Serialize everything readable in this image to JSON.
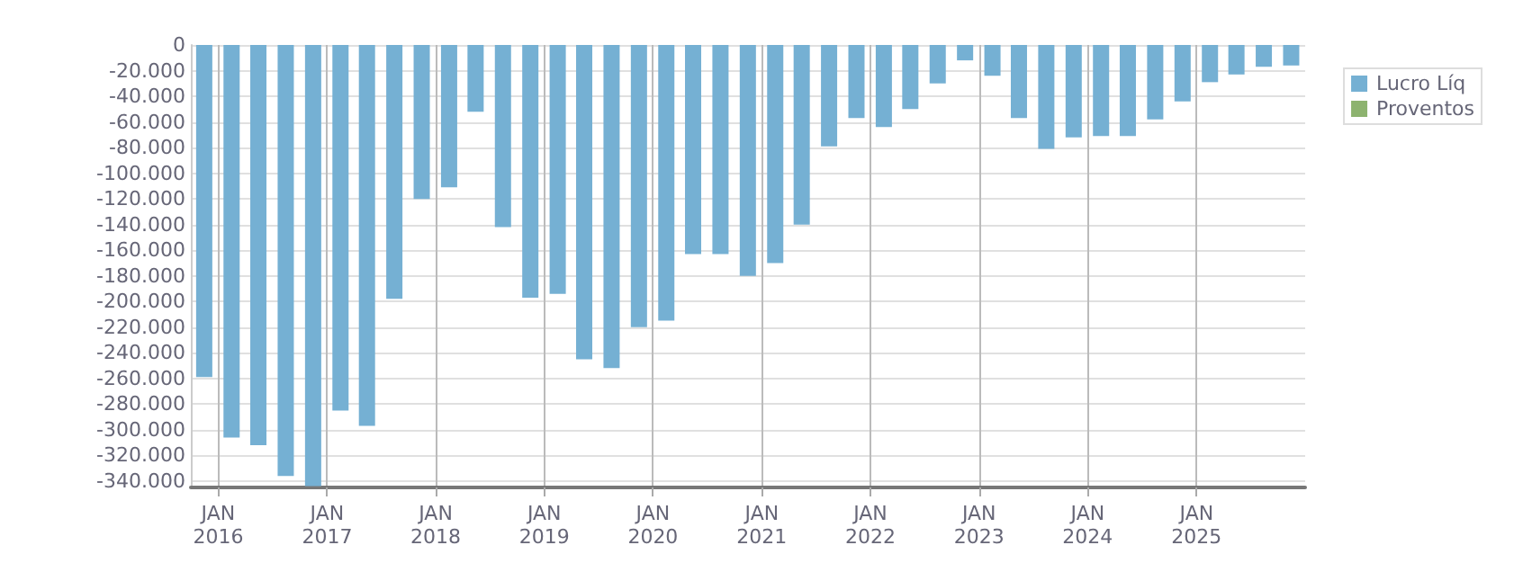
{
  "chart_data": {
    "type": "bar",
    "x": [
      "2015-11-15",
      "2016-02-15",
      "2016-05-15",
      "2016-08-15",
      "2016-11-15",
      "2017-02-15",
      "2017-05-15",
      "2017-08-15",
      "2017-11-15",
      "2018-02-15",
      "2018-05-15",
      "2018-08-15",
      "2018-11-15",
      "2019-02-15",
      "2019-05-15",
      "2019-08-15",
      "2019-11-15",
      "2020-02-15",
      "2020-05-15",
      "2020-08-15",
      "2020-11-15",
      "2021-02-15",
      "2021-05-15",
      "2021-08-15",
      "2021-11-15",
      "2022-02-15",
      "2022-05-15",
      "2022-08-15",
      "2022-11-15",
      "2023-02-15",
      "2023-05-15",
      "2023-08-15",
      "2023-11-15",
      "2024-02-15",
      "2024-05-15",
      "2024-08-15",
      "2024-11-15",
      "2025-02-15",
      "2025-05-15",
      "2025-08-15",
      "2025-11-15"
    ],
    "series": [
      {
        "name": "Lucro Líq",
        "color": "#75b0d3",
        "values": [
          -259000,
          -306000,
          -312000,
          -336000,
          -344000,
          -285000,
          -297000,
          -198000,
          -120000,
          -111000,
          -52000,
          -142000,
          -197000,
          -194000,
          -245000,
          -252000,
          -220000,
          -215000,
          -163000,
          -163000,
          -180000,
          -170000,
          -140000,
          -79000,
          -57000,
          -64000,
          -50000,
          -30000,
          -12000,
          -24000,
          -57000,
          -81000,
          -72000,
          -71000,
          -71000,
          -58000,
          -44000,
          -29000,
          -23000,
          -17000,
          -16000
        ]
      },
      {
        "name": "Proventos",
        "color": "#8db36f",
        "values": [
          null,
          null,
          null,
          null,
          null,
          null,
          null,
          null,
          null,
          null,
          null,
          null,
          null,
          null,
          null,
          null,
          null,
          null,
          null,
          null,
          null,
          null,
          null,
          null,
          null,
          null,
          null,
          null,
          null,
          null,
          null,
          null,
          null,
          null,
          null,
          null,
          null,
          null,
          null,
          null,
          null
        ]
      }
    ],
    "xlim": [
      "2015-10",
      "2026-01"
    ],
    "xticks": [
      {
        "value": "2016-01",
        "label": "JAN\n2016"
      },
      {
        "value": "2017-01",
        "label": "JAN\n2017"
      },
      {
        "value": "2018-01",
        "label": "JAN\n2018"
      },
      {
        "value": "2019-01",
        "label": "JAN\n2019"
      },
      {
        "value": "2020-01",
        "label": "JAN\n2020"
      },
      {
        "value": "2021-01",
        "label": "JAN\n2021"
      },
      {
        "value": "2022-01",
        "label": "JAN\n2022"
      },
      {
        "value": "2023-01",
        "label": "JAN\n2023"
      },
      {
        "value": "2024-01",
        "label": "JAN\n2024"
      },
      {
        "value": "2025-01",
        "label": "JAN\n2025"
      }
    ],
    "ylim": [
      -345000,
      0
    ],
    "yticks": [
      {
        "value": 0,
        "label": "0"
      },
      {
        "value": -20000,
        "label": "-20.000"
      },
      {
        "value": -40000,
        "label": "-40.000"
      },
      {
        "value": -60000,
        "label": "-60.000"
      },
      {
        "value": -80000,
        "label": "-80.000"
      },
      {
        "value": -100000,
        "label": "-100.000"
      },
      {
        "value": -120000,
        "label": "-120.000"
      },
      {
        "value": -140000,
        "label": "-140.000"
      },
      {
        "value": -160000,
        "label": "-160.000"
      },
      {
        "value": -180000,
        "label": "-180.000"
      },
      {
        "value": -200000,
        "label": "-200.000"
      },
      {
        "value": -220000,
        "label": "-220.000"
      },
      {
        "value": -240000,
        "label": "-240.000"
      },
      {
        "value": -260000,
        "label": "-260.000"
      },
      {
        "value": -280000,
        "label": "-280.000"
      },
      {
        "value": -300000,
        "label": "-300.000"
      },
      {
        "value": -320000,
        "label": "-320.000"
      },
      {
        "value": -340000,
        "label": "-340.000"
      }
    ],
    "grid": true,
    "legend": "top right"
  }
}
